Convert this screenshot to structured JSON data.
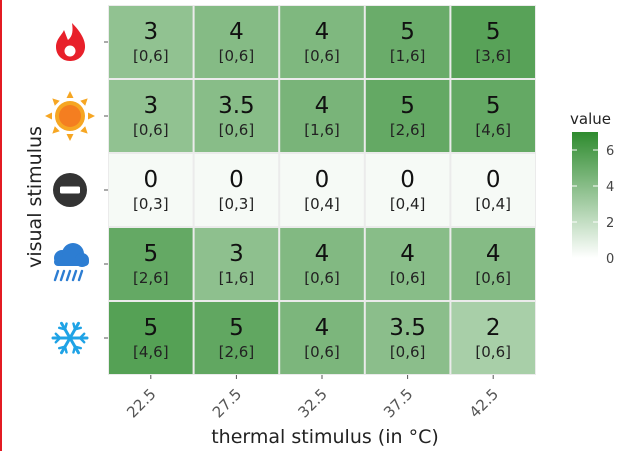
{
  "chart_data": {
    "type": "heatmap",
    "xlabel": "thermal stimulus (in °C)",
    "ylabel": "visual stimulus",
    "x_categories": [
      "22.5",
      "27.5",
      "32.5",
      "37.5",
      "42.5"
    ],
    "y_categories": [
      "fire-icon",
      "sun-icon",
      "no-entry-icon",
      "rain-cloud-icon",
      "snowflake-icon"
    ],
    "values": [
      [
        3,
        4,
        4,
        5,
        5
      ],
      [
        3,
        3.5,
        4,
        5,
        5
      ],
      [
        0,
        0,
        0,
        0,
        0
      ],
      [
        5,
        3,
        4,
        4,
        4
      ],
      [
        5,
        5,
        4,
        3.5,
        2
      ]
    ],
    "value_labels": [
      [
        "3",
        "4",
        "4",
        "5",
        "5"
      ],
      [
        "3",
        "3.5",
        "4",
        "5",
        "5"
      ],
      [
        "0",
        "0",
        "0",
        "0",
        "0"
      ],
      [
        "5",
        "3",
        "4",
        "4",
        "4"
      ],
      [
        "5",
        "5",
        "4",
        "3.5",
        "2"
      ]
    ],
    "range_labels": [
      [
        "[0,6]",
        "[0,6]",
        "[0,6]",
        "[1,6]",
        "[3,6]"
      ],
      [
        "[0,6]",
        "[0,6]",
        "[1,6]",
        "[2,6]",
        "[4,6]"
      ],
      [
        "[0,3]",
        "[0,3]",
        "[0,4]",
        "[0,4]",
        "[0,4]"
      ],
      [
        "[2,6]",
        "[1,6]",
        "[0,6]",
        "[0,6]",
        "[0,6]"
      ],
      [
        "[4,6]",
        "[2,6]",
        "[0,6]",
        "[0,6]",
        "[0,6]"
      ]
    ],
    "fill_values": [
      [
        3.7,
        4.1,
        4.3,
        5.0,
        5.6
      ],
      [
        3.7,
        4.0,
        4.5,
        5.2,
        5.2
      ],
      [
        0.3,
        0.3,
        0.3,
        0.3,
        0.3
      ],
      [
        5.2,
        3.8,
        4.2,
        4.0,
        4.1
      ],
      [
        5.7,
        5.3,
        4.4,
        3.9,
        2.9
      ]
    ],
    "legend": {
      "title": "value",
      "ticks": [
        "0",
        "2",
        "4",
        "6"
      ],
      "tick_values": [
        0,
        2,
        4,
        6
      ],
      "range": [
        0,
        7
      ],
      "low_color": "#ffffff",
      "high_color": "#2e8b2e"
    },
    "grid": true,
    "panel_background": "#ebebeb",
    "icon_colors": {
      "fire-icon": "#e8202a",
      "sun-icon": "#f47e20",
      "no-entry-icon": "#333333",
      "rain-cloud-icon": "#2d7dd2",
      "snowflake-icon": "#1fa3e6"
    }
  }
}
